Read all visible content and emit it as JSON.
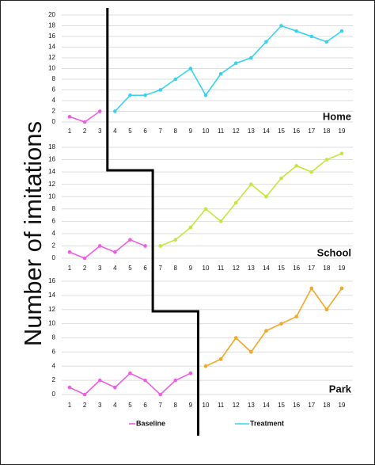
{
  "ylabel": "Number of imitations",
  "legend": [
    {
      "name": "Baseline",
      "color": "#ef5ce4"
    },
    {
      "name": "Treatment",
      "color": "#35d3ef"
    }
  ],
  "chart_data": [
    {
      "type": "line",
      "label": "Home",
      "label_color": "#35d3ef",
      "x": [
        1,
        2,
        3,
        4,
        5,
        6,
        7,
        8,
        9,
        10,
        11,
        12,
        13,
        14,
        15,
        16,
        17,
        18,
        19
      ],
      "xlim": [
        1,
        19
      ],
      "ylim": [
        0,
        20
      ],
      "yticks": [
        0,
        2,
        4,
        6,
        8,
        10,
        12,
        14,
        16,
        18,
        20
      ],
      "grid": true,
      "series": [
        {
          "color": "#ef5ce4",
          "values": [
            1,
            0,
            2,
            null,
            null,
            null,
            null,
            null,
            null,
            null,
            null,
            null,
            null,
            null,
            null,
            null,
            null,
            null,
            null
          ]
        },
        {
          "color": "#35d3ef",
          "values": [
            null,
            null,
            null,
            2,
            5,
            5,
            6,
            8,
            10,
            5,
            9,
            11,
            12,
            15,
            18,
            17,
            16,
            15,
            17
          ]
        }
      ]
    },
    {
      "type": "line",
      "label": "School",
      "label_color": "#c3e83a",
      "x": [
        1,
        2,
        3,
        4,
        5,
        6,
        7,
        8,
        9,
        10,
        11,
        12,
        13,
        14,
        15,
        16,
        17,
        18,
        19
      ],
      "xlim": [
        1,
        19
      ],
      "ylim": [
        0,
        18
      ],
      "yticks": [
        0,
        2,
        4,
        6,
        8,
        10,
        12,
        14,
        16,
        18
      ],
      "grid": true,
      "series": [
        {
          "color": "#ef5ce4",
          "values": [
            1,
            0,
            2,
            1,
            3,
            2,
            null,
            null,
            null,
            null,
            null,
            null,
            null,
            null,
            null,
            null,
            null,
            null,
            null
          ]
        },
        {
          "color": "#c3e83a",
          "values": [
            null,
            null,
            null,
            null,
            null,
            null,
            2,
            3,
            5,
            8,
            6,
            9,
            12,
            10,
            13,
            15,
            14,
            16,
            17
          ]
        }
      ]
    },
    {
      "type": "line",
      "label": "Park",
      "label_color": "#f5a623",
      "x": [
        1,
        2,
        3,
        4,
        5,
        6,
        7,
        8,
        9,
        10,
        11,
        12,
        13,
        14,
        15,
        16,
        17,
        18,
        19
      ],
      "xlim": [
        1,
        19
      ],
      "ylim": [
        0,
        16
      ],
      "yticks": [
        0,
        2,
        4,
        6,
        8,
        10,
        12,
        14,
        16
      ],
      "grid": true,
      "series": [
        {
          "color": "#ef5ce4",
          "values": [
            1,
            0,
            2,
            1,
            3,
            2,
            0,
            2,
            3,
            null,
            null,
            null,
            null,
            null,
            null,
            null,
            null,
            null,
            null
          ]
        },
        {
          "color": "#f5a623",
          "values": [
            null,
            null,
            null,
            null,
            null,
            null,
            null,
            null,
            null,
            4,
            5,
            8,
            6,
            9,
            10,
            11,
            15,
            12,
            15
          ]
        }
      ]
    }
  ]
}
